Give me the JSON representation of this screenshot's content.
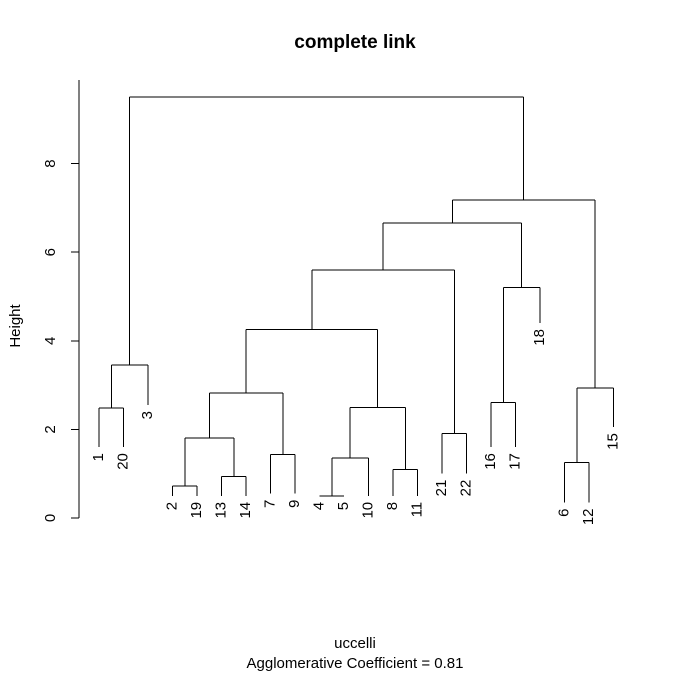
{
  "chart_data": {
    "type": "dendrogram",
    "title": "complete link",
    "ylabel": "Height",
    "xlabel": "uccelli",
    "subtitle": "Agglomerative Coefficient =  0.81",
    "ylim": [
      0,
      9.5
    ],
    "yticks": [
      0,
      2,
      4,
      6,
      8
    ],
    "leaf_order": [
      "1",
      "20",
      "3",
      "2",
      "19",
      "13",
      "14",
      "7",
      "9",
      "4",
      "5",
      "10",
      "8",
      "11",
      "21",
      "22",
      "16",
      "17",
      "18",
      "6",
      "12",
      "15"
    ],
    "leaf_heights": {
      "1": 1.6,
      "20": 1.6,
      "3": 2.55,
      "2": 0.5,
      "19": 0.5,
      "13": 0.5,
      "14": 0.5,
      "7": 0.55,
      "9": 0.55,
      "4": 0.5,
      "5": 0.5,
      "10": 0.5,
      "8": 0.5,
      "11": 0.5,
      "21": 1.0,
      "22": 1.0,
      "16": 1.6,
      "17": 1.6,
      "18": 4.4,
      "6": 0.35,
      "12": 0.35,
      "15": 2.05
    },
    "merges": [
      {
        "id": "A",
        "left": "1",
        "right": "20",
        "height": 2.48
      },
      {
        "id": "B",
        "left": "A",
        "right": "3",
        "height": 3.45
      },
      {
        "id": "C",
        "left": "2",
        "right": "19",
        "height": 0.72
      },
      {
        "id": "D",
        "left": "13",
        "right": "14",
        "height": 0.94
      },
      {
        "id": "E",
        "left": "C",
        "right": "D",
        "height": 1.81
      },
      {
        "id": "F",
        "left": "7",
        "right": "9",
        "height": 1.43
      },
      {
        "id": "G",
        "left": "E",
        "right": "F",
        "height": 2.82
      },
      {
        "id": "H",
        "left": "4",
        "right": "5",
        "height": 0.5
      },
      {
        "id": "I",
        "left": "H",
        "right": "10",
        "height": 1.36
      },
      {
        "id": "J",
        "left": "8",
        "right": "11",
        "height": 1.09
      },
      {
        "id": "K",
        "left": "I",
        "right": "J",
        "height": 2.5
      },
      {
        "id": "L",
        "left": "G",
        "right": "K",
        "height": 4.26
      },
      {
        "id": "M",
        "left": "21",
        "right": "22",
        "height": 1.91
      },
      {
        "id": "N",
        "left": "L",
        "right": "M",
        "height": 5.6
      },
      {
        "id": "O",
        "left": "16",
        "right": "17",
        "height": 2.61
      },
      {
        "id": "P",
        "left": "O",
        "right": "18",
        "height": 5.2
      },
      {
        "id": "Q",
        "left": "N",
        "right": "P",
        "height": 6.66
      },
      {
        "id": "R",
        "left": "6",
        "right": "12",
        "height": 1.25
      },
      {
        "id": "S",
        "left": "R",
        "right": "15",
        "height": 2.93
      },
      {
        "id": "T",
        "left": "Q",
        "right": "S",
        "height": 7.18
      },
      {
        "id": "U",
        "left": "B",
        "right": "T",
        "height": 9.5
      }
    ]
  }
}
